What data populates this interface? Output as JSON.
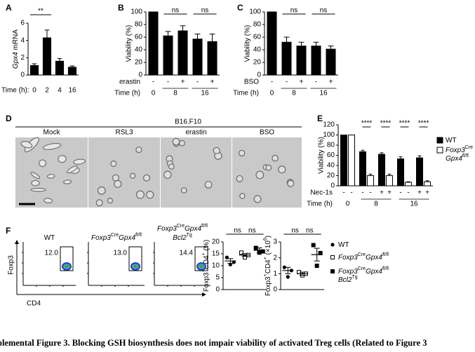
{
  "chart_data": [
    {
      "panel": "A",
      "type": "bar",
      "y_label": [
        {
          "text": "Gpx4",
          "italic": true
        },
        {
          "text": " mRNA"
        }
      ],
      "x_label": "Time (h):",
      "categories": [
        "0",
        "2",
        "4",
        "16"
      ],
      "values": [
        1.1,
        4.3,
        1.6,
        0.9
      ],
      "errors": [
        0.2,
        0.9,
        0.3,
        0.15
      ],
      "color": "#000000",
      "ylim": [
        0,
        6
      ],
      "yticks": [
        0,
        2,
        4,
        6
      ],
      "annotations": [
        "**"
      ]
    },
    {
      "panel": "B",
      "type": "bar",
      "y_label": "Viability (%)",
      "values": [
        100,
        62,
        70,
        57,
        53
      ],
      "errors": [
        0,
        7,
        8,
        8,
        12
      ],
      "color": "#000000",
      "ylim": [
        0,
        100
      ],
      "yticks": [
        0,
        20,
        40,
        60,
        80,
        100
      ],
      "treatment": {
        "label": "erastin",
        "values": [
          "-",
          "-",
          "+",
          "-",
          "+"
        ]
      },
      "time": {
        "label": "Time (h)",
        "values": [
          "0",
          "8",
          "16"
        ]
      },
      "annotations": [
        "ns",
        "ns"
      ]
    },
    {
      "panel": "C",
      "type": "bar",
      "y_label": "Viability (%)",
      "values": [
        100,
        52,
        46,
        46,
        41
      ],
      "errors": [
        0,
        8,
        6,
        6,
        5
      ],
      "color": "#000000",
      "ylim": [
        0,
        100
      ],
      "yticks": [
        0,
        20,
        40,
        60,
        80,
        100
      ],
      "treatment": {
        "label": "BSO",
        "values": [
          "-",
          "-",
          "+",
          "-",
          "+"
        ]
      },
      "time": {
        "label": "Time (h)",
        "values": [
          "0",
          "8",
          "16"
        ]
      },
      "annotations": [
        "ns",
        "ns"
      ]
    },
    {
      "panel": "E",
      "type": "grouped-bar",
      "y_label": "Viability (%)",
      "ylim": [
        0,
        120
      ],
      "yticks": [
        0,
        20,
        40,
        60,
        80,
        100,
        120
      ],
      "series": [
        {
          "name": [
            [
              {
                "text": "WT"
              }
            ]
          ],
          "color": "#000000",
          "values": [
            100,
            67,
            62,
            53,
            55
          ],
          "errors": [
            0,
            3,
            3,
            4,
            4
          ]
        },
        {
          "name": [
            [
              {
                "text": "Foxp3",
                "italic": true
              },
              {
                "text": "Cre",
                "sup": true
              }
            ],
            [
              {
                "text": "Gpx4",
                "italic": true
              },
              {
                "text": "fl/fl",
                "sup": true
              }
            ]
          ],
          "color": "#ffffff",
          "values": [
            100,
            20,
            20,
            7,
            8
          ],
          "errors": [
            0,
            3,
            3,
            1,
            2
          ]
        }
      ],
      "treatment": {
        "label": "Nec-1s",
        "values": [
          "-",
          "-",
          "-",
          "-",
          "+",
          "+",
          "-",
          "-",
          "+",
          "+"
        ]
      },
      "time": {
        "label": "Time (h)",
        "values": [
          "0",
          "8",
          "16"
        ]
      },
      "annotations": [
        "****",
        "****",
        "****",
        "****"
      ],
      "legend": "right"
    },
    {
      "panel": "F",
      "type": "dot",
      "y_label": [
        {
          "text": "Foxp3"
        },
        {
          "text": "+",
          "sup": true
        },
        {
          "text": "CD4"
        },
        {
          "text": "+",
          "sup": true
        },
        {
          "text": " (%)"
        }
      ],
      "ylim": [
        0,
        20
      ],
      "yticks": [
        0,
        5,
        10,
        15,
        20
      ],
      "series": [
        {
          "marker": "circle",
          "color": "#000000",
          "values": [
            13.5,
            11.5,
            10.5
          ],
          "mean": 12,
          "error": 1
        },
        {
          "marker": "open-square",
          "color": "#000000",
          "values": [
            15.5,
            14.5,
            13.5
          ],
          "mean": 14.5,
          "error": 0.6
        },
        {
          "marker": "square",
          "color": "#000000",
          "values": [
            17.5,
            16,
            15.5
          ],
          "mean": 16.5,
          "error": 1
        }
      ],
      "annotations": [
        "ns",
        "ns"
      ]
    },
    {
      "type": "dot",
      "y_label": [
        {
          "text": "Foxp3"
        },
        {
          "text": "+",
          "sup": true
        },
        {
          "text": "CD4"
        },
        {
          "text": "+",
          "sup": true
        },
        {
          "text": " (×10"
        },
        {
          "text": "6",
          "sup": true
        },
        {
          "text": ")"
        }
      ],
      "ylim": [
        0,
        3
      ],
      "yticks": [
        0,
        1,
        2,
        3
      ],
      "series": [
        {
          "name": [
            [
              {
                "text": "WT"
              }
            ]
          ],
          "marker": "circle",
          "color": "#000000",
          "values": [
            1.4,
            1.2,
            0.8
          ],
          "mean": 1.2,
          "error": 0.2
        },
        {
          "name": [
            [
              {
                "text": "Foxp3",
                "italic": true
              },
              {
                "text": "Cre",
                "sup": true
              },
              {
                "text": "Gpx4",
                "italic": true
              },
              {
                "text": "fl/fl",
                "sup": true
              }
            ]
          ],
          "marker": "open-square",
          "color": "#000000",
          "values": [
            1.1,
            1.0,
            0.9
          ],
          "mean": 1.0,
          "error": 0.1
        },
        {
          "name": [
            [
              {
                "text": "Foxp3",
                "italic": true
              },
              {
                "text": "Cre",
                "sup": true
              },
              {
                "text": "Gpx4",
                "italic": true
              },
              {
                "text": "fl/fl",
                "sup": true
              }
            ],
            [
              {
                "text": "Bcl2",
                "italic": true
              },
              {
                "text": "Tg",
                "sup": true
              }
            ]
          ],
          "marker": "square",
          "color": "#000000",
          "values": [
            2.8,
            2.3,
            1.5
          ],
          "mean": 2.2,
          "error": 0.4
        }
      ],
      "annotations": [
        "ns",
        "ns"
      ],
      "legend": "right"
    }
  ],
  "micrographs": {
    "panel": "D",
    "cell_line": "B16.F10",
    "labels": [
      "Mock",
      "RSL3",
      "erastin",
      "BSO"
    ]
  },
  "flow": {
    "y_axis": "Foxp3",
    "x_axis": "CD4",
    "plots": [
      {
        "title": [
          [
            {
              "text": "WT"
            }
          ]
        ],
        "gate": "12.0"
      },
      {
        "title": [
          [
            {
              "text": "Foxp3",
              "italic": true
            },
            {
              "text": "Cre",
              "sup": true
            },
            {
              "text": "Gpx4",
              "italic": true
            },
            {
              "text": "fl/fl",
              "sup": true
            }
          ]
        ],
        "gate": "13.0"
      },
      {
        "title": [
          [
            {
              "text": "Foxp3",
              "italic": true
            },
            {
              "text": "Cre",
              "sup": true
            },
            {
              "text": "Gpx4",
              "italic": true
            },
            {
              "text": "fl/fl",
              "sup": true
            }
          ],
          [
            {
              "text": "Bcl2",
              "italic": true
            },
            {
              "text": "Tg",
              "sup": true
            }
          ]
        ],
        "gate": "14.4"
      }
    ]
  },
  "caption": "plemental Figure 3. Blocking GSH biosynthesis does not impair viability of activated Treg cells (Related to Figure 3"
}
